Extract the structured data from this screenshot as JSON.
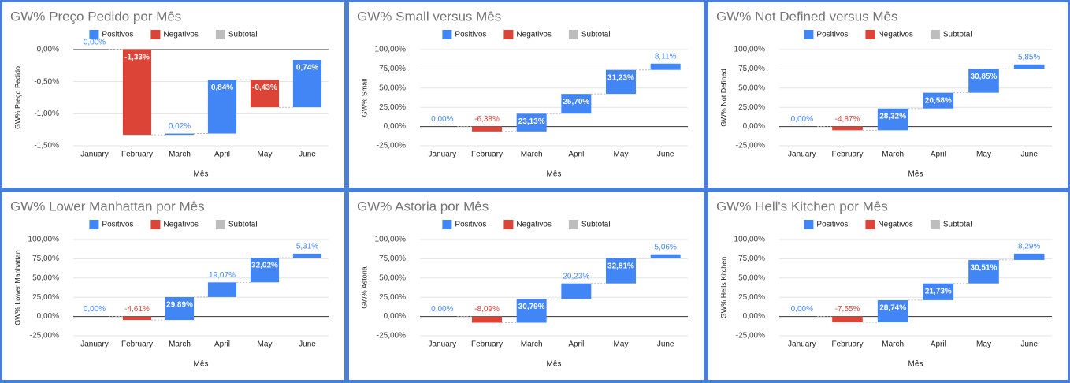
{
  "chart_data": [
    {
      "type": "waterfall",
      "title": "GW% Preço Pedido por Mês",
      "x_label": "Mês",
      "y_label": "GW% Preço Pedido",
      "legend": [
        {
          "name": "Positivos",
          "color": "#4285f4"
        },
        {
          "name": "Negativos",
          "color": "#db4437"
        },
        {
          "name": "Subtotal",
          "color": "#bdbdbd"
        }
      ],
      "categories": [
        "January",
        "February",
        "March",
        "April",
        "May",
        "June"
      ],
      "values": [
        0,
        -1.33,
        0.02,
        0.84,
        -0.43,
        0.74
      ],
      "value_labels": [
        "0,00%",
        "-1,33%",
        "0,02%",
        "0,84%",
        "-0,43%",
        "0,74%"
      ],
      "ylim": [
        -1.5,
        0
      ],
      "yticks": [
        {
          "value": 0,
          "label": "0,00%"
        },
        {
          "value": -0.5,
          "label": "-0,50%"
        },
        {
          "value": -1,
          "label": "-1,00%"
        },
        {
          "value": -1.5,
          "label": "-1,50%"
        }
      ],
      "grid": true
    },
    {
      "type": "waterfall",
      "title": "GW% Small versus Mês",
      "x_label": "Mês",
      "y_label": "GW% Small",
      "legend": [
        {
          "name": "Positivos",
          "color": "#4285f4"
        },
        {
          "name": "Negativos",
          "color": "#db4437"
        },
        {
          "name": "Subtotal",
          "color": "#bdbdbd"
        }
      ],
      "categories": [
        "January",
        "February",
        "March",
        "April",
        "May",
        "June"
      ],
      "values": [
        0,
        -6.38,
        23.13,
        25.7,
        31.23,
        8.11
      ],
      "value_labels": [
        "0,00%",
        "-6,38%",
        "23,13%",
        "25,70%",
        "31,23%",
        "8,11%"
      ],
      "ylim": [
        -25,
        100
      ],
      "yticks": [
        {
          "value": 100,
          "label": "100,00%"
        },
        {
          "value": 75,
          "label": "75,00%"
        },
        {
          "value": 50,
          "label": "50,00%"
        },
        {
          "value": 25,
          "label": "25,00%"
        },
        {
          "value": 0,
          "label": "0,00%"
        },
        {
          "value": -25,
          "label": "-25,00%"
        }
      ],
      "grid": true
    },
    {
      "type": "waterfall",
      "title": "GW% Not Defined versus Mês",
      "x_label": "Mês",
      "y_label": "GW% Not Defined",
      "legend": [
        {
          "name": "Positivos",
          "color": "#4285f4"
        },
        {
          "name": "Negativos",
          "color": "#db4437"
        },
        {
          "name": "Subtotal",
          "color": "#bdbdbd"
        }
      ],
      "categories": [
        "January",
        "February",
        "March",
        "April",
        "May",
        "June"
      ],
      "values": [
        0,
        -4.87,
        28.32,
        20.58,
        30.85,
        5.85
      ],
      "value_labels": [
        "0,00%",
        "-4,87%",
        "28,32%",
        "20,58%",
        "30,85%",
        "5,85%"
      ],
      "ylim": [
        -25,
        100
      ],
      "yticks": [
        {
          "value": 100,
          "label": "100,00%"
        },
        {
          "value": 75,
          "label": "75,00%"
        },
        {
          "value": 50,
          "label": "50,00%"
        },
        {
          "value": 25,
          "label": "25,00%"
        },
        {
          "value": 0,
          "label": "0,00%"
        },
        {
          "value": -25,
          "label": "-25,00%"
        }
      ],
      "grid": true
    },
    {
      "type": "waterfall",
      "title": "GW% Lower Manhattan por Mês",
      "x_label": "Mês",
      "y_label": "GW% Lower Manhattan",
      "legend": [
        {
          "name": "Positivos",
          "color": "#4285f4"
        },
        {
          "name": "Negativos",
          "color": "#db4437"
        },
        {
          "name": "Subtotal",
          "color": "#bdbdbd"
        }
      ],
      "categories": [
        "January",
        "February",
        "March",
        "April",
        "May",
        "June"
      ],
      "values": [
        0,
        -4.61,
        29.89,
        19.07,
        32.02,
        5.31
      ],
      "value_labels": [
        "0,00%",
        "-4,61%",
        "29,89%",
        "19,07%",
        "32,02%",
        "5,31%"
      ],
      "ylim": [
        -25,
        100
      ],
      "yticks": [
        {
          "value": 100,
          "label": "100,00%"
        },
        {
          "value": 75,
          "label": "75,00%"
        },
        {
          "value": 50,
          "label": "50,00%"
        },
        {
          "value": 25,
          "label": "25,00%"
        },
        {
          "value": 0,
          "label": "0,00%"
        },
        {
          "value": -25,
          "label": "-25,00%"
        }
      ],
      "grid": true
    },
    {
      "type": "waterfall",
      "title": "GW% Astoria por Mês",
      "x_label": "Mês",
      "y_label": "GW% Astoria",
      "legend": [
        {
          "name": "Positivos",
          "color": "#4285f4"
        },
        {
          "name": "Negativos",
          "color": "#db4437"
        },
        {
          "name": "Subtotal",
          "color": "#bdbdbd"
        }
      ],
      "categories": [
        "January",
        "February",
        "March",
        "April",
        "May",
        "June"
      ],
      "values": [
        0,
        -8.09,
        30.79,
        20.23,
        32.81,
        5.06
      ],
      "value_labels": [
        "0,00%",
        "-8,09%",
        "30,79%",
        "20,23%",
        "32,81%",
        "5,06%"
      ],
      "ylim": [
        -25,
        100
      ],
      "yticks": [
        {
          "value": 100,
          "label": "100,00%"
        },
        {
          "value": 75,
          "label": "75,00%"
        },
        {
          "value": 50,
          "label": "50,00%"
        },
        {
          "value": 25,
          "label": "25,00%"
        },
        {
          "value": 0,
          "label": "0,00%"
        },
        {
          "value": -25,
          "label": "-25,00%"
        }
      ],
      "grid": true
    },
    {
      "type": "waterfall",
      "title": "GW% Hell's Kitchen por Mês",
      "x_label": "Mês",
      "y_label": "GW% Hells Kitchen",
      "legend": [
        {
          "name": "Positivos",
          "color": "#4285f4"
        },
        {
          "name": "Negativos",
          "color": "#db4437"
        },
        {
          "name": "Subtotal",
          "color": "#bdbdbd"
        }
      ],
      "categories": [
        "January",
        "February",
        "March",
        "April",
        "May",
        "June"
      ],
      "values": [
        0,
        -7.55,
        28.74,
        21.73,
        30.51,
        8.29
      ],
      "value_labels": [
        "0,00%",
        "-7,55%",
        "28,74%",
        "21,73%",
        "30,51%",
        "8,29%"
      ],
      "ylim": [
        -25,
        100
      ],
      "yticks": [
        {
          "value": 100,
          "label": "100,00%"
        },
        {
          "value": 75,
          "label": "75,00%"
        },
        {
          "value": 50,
          "label": "50,00%"
        },
        {
          "value": 25,
          "label": "25,00%"
        },
        {
          "value": 0,
          "label": "0,00%"
        },
        {
          "value": -25,
          "label": "-25,00%"
        }
      ],
      "grid": true
    }
  ]
}
